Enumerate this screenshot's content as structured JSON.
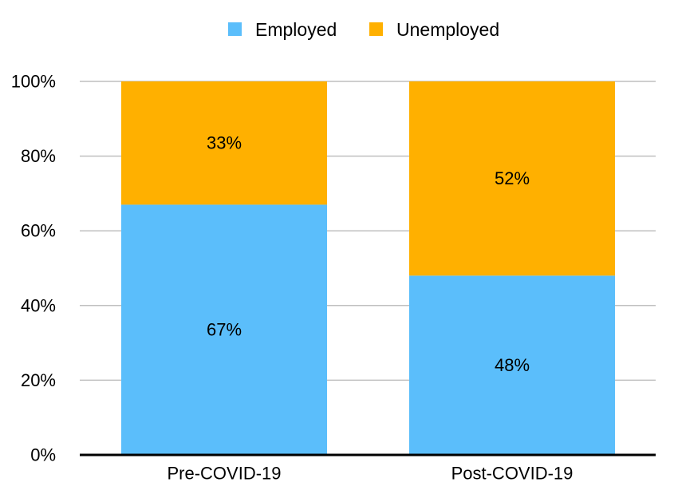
{
  "chart_data": {
    "type": "bar",
    "stacked": true,
    "categories": [
      "Pre-COVID-19",
      "Post-COVID-19"
    ],
    "series": [
      {
        "name": "Employed",
        "values": [
          67,
          48
        ],
        "labels": [
          "67%",
          "48%"
        ],
        "color": "#5BBEFB"
      },
      {
        "name": "Unemployed",
        "values": [
          33,
          52
        ],
        "labels": [
          "33%",
          "52%"
        ],
        "color": "#FFB000"
      }
    ],
    "ylim": [
      0,
      100
    ],
    "yticks": [
      0,
      20,
      40,
      60,
      80,
      100
    ],
    "ytick_labels": [
      "0%",
      "20%",
      "40%",
      "60%",
      "80%",
      "100%"
    ],
    "grid": true,
    "legend_position": "top-center",
    "title": "",
    "xlabel": "",
    "ylabel": ""
  }
}
